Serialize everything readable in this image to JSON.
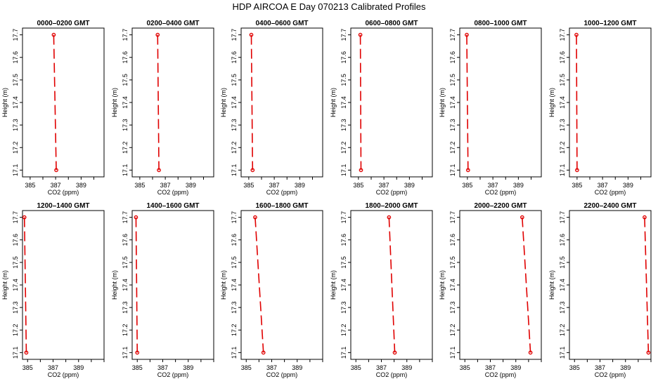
{
  "title": "HDP  AIRCOA E  Day 070213  Calibrated Profiles",
  "chart_data": [
    {
      "type": "line",
      "title": "0000–0200 GMT",
      "xlabel": "CO2 (ppm)",
      "ylabel": "Height (m)",
      "xlim": [
        384.4,
        390.8
      ],
      "ylim": [
        17.07,
        17.73
      ],
      "xticks": [
        385,
        387,
        389
      ],
      "yticks": [
        17.1,
        17.2,
        17.3,
        17.4,
        17.5,
        17.6,
        17.7
      ],
      "marker": "circle",
      "series": [
        {
          "x": [
            386.85,
            387.05
          ],
          "y": [
            17.7,
            17.1
          ]
        }
      ]
    },
    {
      "type": "line",
      "title": "0200–0400 GMT",
      "xlabel": "CO2 (ppm)",
      "ylabel": "Height (m)",
      "xlim": [
        384.4,
        390.8
      ],
      "ylim": [
        17.07,
        17.73
      ],
      "xticks": [
        385,
        387,
        389
      ],
      "yticks": [
        17.1,
        17.2,
        17.3,
        17.4,
        17.5,
        17.6,
        17.7
      ],
      "marker": "circle",
      "series": [
        {
          "x": [
            386.4,
            386.5
          ],
          "y": [
            17.7,
            17.1
          ]
        }
      ]
    },
    {
      "type": "line",
      "title": "0400–0600 GMT",
      "xlabel": "CO2 (ppm)",
      "ylabel": "Height (m)",
      "xlim": [
        384.4,
        390.8
      ],
      "ylim": [
        17.07,
        17.73
      ],
      "xticks": [
        385,
        387,
        389
      ],
      "yticks": [
        17.1,
        17.2,
        17.3,
        17.4,
        17.5,
        17.6,
        17.7
      ],
      "marker": "circle",
      "series": [
        {
          "x": [
            385.2,
            385.3
          ],
          "y": [
            17.7,
            17.1
          ]
        }
      ]
    },
    {
      "type": "line",
      "title": "0600–0800 GMT",
      "xlabel": "CO2 (ppm)",
      "ylabel": "Height (m)",
      "xlim": [
        384.4,
        390.8
      ],
      "ylim": [
        17.07,
        17.73
      ],
      "xticks": [
        385,
        387,
        389
      ],
      "yticks": [
        17.1,
        17.2,
        17.3,
        17.4,
        17.5,
        17.6,
        17.7
      ],
      "marker": "circle",
      "series": [
        {
          "x": [
            385.15,
            385.2
          ],
          "y": [
            17.7,
            17.1
          ]
        }
      ]
    },
    {
      "type": "line",
      "title": "0800–1000 GMT",
      "xlabel": "CO2 (ppm)",
      "ylabel": "Height (m)",
      "xlim": [
        384.4,
        390.8
      ],
      "ylim": [
        17.07,
        17.73
      ],
      "xticks": [
        385,
        387,
        389
      ],
      "yticks": [
        17.1,
        17.2,
        17.3,
        17.4,
        17.5,
        17.6,
        17.7
      ],
      "marker": "circle",
      "series": [
        {
          "x": [
            384.95,
            385.05
          ],
          "y": [
            17.7,
            17.1
          ]
        }
      ]
    },
    {
      "type": "line",
      "title": "1000–1200 GMT",
      "xlabel": "CO2 (ppm)",
      "ylabel": "Height (m)",
      "xlim": [
        384.4,
        390.8
      ],
      "ylim": [
        17.07,
        17.73
      ],
      "xticks": [
        385,
        387,
        389
      ],
      "yticks": [
        17.1,
        17.2,
        17.3,
        17.4,
        17.5,
        17.6,
        17.7
      ],
      "marker": "circle",
      "series": [
        {
          "x": [
            384.95,
            385.0
          ],
          "y": [
            17.7,
            17.1
          ]
        }
      ]
    },
    {
      "type": "line",
      "title": "1200–1400 GMT",
      "xlabel": "CO2 (ppm)",
      "ylabel": "Height (m)",
      "xlim": [
        384.6,
        391.0
      ],
      "ylim": [
        17.07,
        17.73
      ],
      "xticks": [
        385,
        387,
        389
      ],
      "yticks": [
        17.1,
        17.2,
        17.3,
        17.4,
        17.5,
        17.6,
        17.7
      ],
      "marker": "circle",
      "series": [
        {
          "x": [
            384.75,
            384.9
          ],
          "y": [
            17.7,
            17.1
          ]
        }
      ]
    },
    {
      "type": "line",
      "title": "1400–1600 GMT",
      "xlabel": "CO2 (ppm)",
      "ylabel": "Height (m)",
      "xlim": [
        384.6,
        391.0
      ],
      "ylim": [
        17.07,
        17.73
      ],
      "xticks": [
        385,
        387,
        389
      ],
      "yticks": [
        17.1,
        17.2,
        17.3,
        17.4,
        17.5,
        17.6,
        17.7
      ],
      "marker": "circle",
      "series": [
        {
          "x": [
            384.9,
            385.0
          ],
          "y": [
            17.7,
            17.1
          ]
        }
      ]
    },
    {
      "type": "line",
      "title": "1600–1800 GMT",
      "xlabel": "CO2 (ppm)",
      "ylabel": "Height (m)",
      "xlim": [
        384.6,
        391.0
      ],
      "ylim": [
        17.07,
        17.73
      ],
      "xticks": [
        385,
        387,
        389
      ],
      "yticks": [
        17.1,
        17.2,
        17.3,
        17.4,
        17.5,
        17.6,
        17.7
      ],
      "marker": "circle",
      "series": [
        {
          "x": [
            385.7,
            386.35
          ],
          "y": [
            17.7,
            17.1
          ]
        }
      ]
    },
    {
      "type": "line",
      "title": "1800–2000 GMT",
      "xlabel": "CO2 (ppm)",
      "ylabel": "Height (m)",
      "xlim": [
        384.6,
        391.0
      ],
      "ylim": [
        17.07,
        17.73
      ],
      "xticks": [
        385,
        387,
        389
      ],
      "yticks": [
        17.1,
        17.2,
        17.3,
        17.4,
        17.5,
        17.6,
        17.7
      ],
      "marker": "circle",
      "series": [
        {
          "x": [
            387.6,
            388.05
          ],
          "y": [
            17.7,
            17.1
          ]
        }
      ]
    },
    {
      "type": "line",
      "title": "2000–2200 GMT",
      "xlabel": "CO2 (ppm)",
      "ylabel": "Height (m)",
      "xlim": [
        384.6,
        391.0
      ],
      "ylim": [
        17.07,
        17.73
      ],
      "xticks": [
        385,
        387,
        389
      ],
      "yticks": [
        17.1,
        17.2,
        17.3,
        17.4,
        17.5,
        17.6,
        17.7
      ],
      "marker": "circle",
      "series": [
        {
          "x": [
            389.5,
            390.15
          ],
          "y": [
            17.7,
            17.1
          ]
        }
      ]
    },
    {
      "type": "line",
      "title": "2200–2400 GMT",
      "xlabel": "CO2 (ppm)",
      "ylabel": "Height (m)",
      "xlim": [
        384.6,
        391.0
      ],
      "ylim": [
        17.07,
        17.73
      ],
      "xticks": [
        385,
        387,
        389
      ],
      "yticks": [
        17.1,
        17.2,
        17.3,
        17.4,
        17.5,
        17.6,
        17.7
      ],
      "marker": "circle",
      "series": [
        {
          "x": [
            390.5,
            390.8
          ],
          "y": [
            17.7,
            17.1
          ]
        }
      ]
    }
  ]
}
